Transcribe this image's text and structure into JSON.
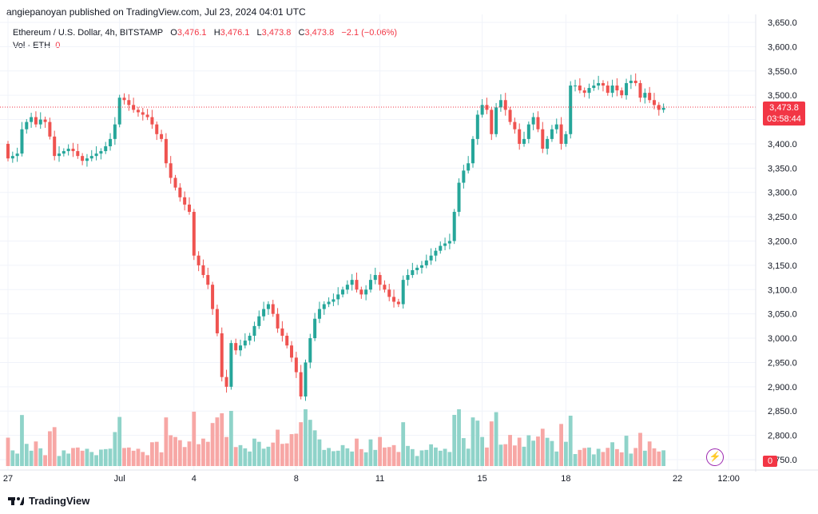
{
  "header": {
    "published_line": "angiepanoyan published on TradingView.com, Jul 23, 2024 04:01 UTC"
  },
  "legend": {
    "symbol": "Ethereum / U.S. Dollar, 4h, BITSTAMP",
    "o_label": "O",
    "o_value": "3,476.1",
    "h_label": "H",
    "h_value": "3,476.1",
    "l_label": "L",
    "l_value": "3,473.8",
    "c_label": "C",
    "c_value": "3,473.8",
    "change": "−2.1 (−0.06%)",
    "vol_label": "Vol · ETH",
    "vol_value": "0"
  },
  "badges": {
    "last_price": "3,473.8",
    "countdown": "03:58:44",
    "volume": "0"
  },
  "footer": {
    "brand": "TradingView"
  },
  "colors": {
    "up": "#26a69a",
    "down": "#ef5350",
    "up_vol": "#8fd3c9",
    "down_vol": "#f7a7a5",
    "grid": "#f0f3fa",
    "accent": "#f23645"
  },
  "chart_data": {
    "type": "candlestick",
    "ylim": [
      2725,
      3660
    ],
    "y_ticks": [
      "3,650.0",
      "3,600.0",
      "3,550.0",
      "3,500.0",
      "3,450.0",
      "3,400.0",
      "3,350.0",
      "3,300.0",
      "3,250.0",
      "3,200.0",
      "3,150.0",
      "3,100.0",
      "3,050.0",
      "3,000.0",
      "2,950.0",
      "2,900.0",
      "2,850.0",
      "2,800.0",
      "2,750.0"
    ],
    "y_tick_values": [
      3650,
      3600,
      3550,
      3500,
      3450,
      3400,
      3350,
      3300,
      3250,
      3200,
      3150,
      3100,
      3050,
      3000,
      2950,
      2900,
      2850,
      2800,
      2750
    ],
    "x_labels": [
      "27",
      "Jul",
      "4",
      "8",
      "11",
      "15",
      "18",
      "22",
      "12:00"
    ],
    "x_label_bar_index": [
      0,
      24,
      40,
      62,
      80,
      102,
      120,
      144,
      155
    ],
    "last_price": 3473.8,
    "closes": [
      3370,
      3375,
      3380,
      3430,
      3445,
      3455,
      3440,
      3450,
      3445,
      3415,
      3375,
      3380,
      3385,
      3390,
      3385,
      3375,
      3365,
      3370,
      3375,
      3380,
      3385,
      3395,
      3410,
      3440,
      3495,
      3490,
      3480,
      3470,
      3465,
      3460,
      3455,
      3440,
      3420,
      3410,
      3360,
      3330,
      3310,
      3290,
      3275,
      3260,
      3170,
      3150,
      3130,
      3110,
      3060,
      3010,
      2920,
      2900,
      2990,
      2975,
      2985,
      2995,
      3005,
      3025,
      3045,
      3060,
      3070,
      3050,
      3020,
      3005,
      2985,
      2960,
      2930,
      2880,
      2950,
      3000,
      3040,
      3060,
      3070,
      3075,
      3080,
      3090,
      3100,
      3110,
      3120,
      3100,
      3090,
      3100,
      3120,
      3130,
      3110,
      3100,
      3085,
      3075,
      3070,
      3120,
      3130,
      3140,
      3145,
      3150,
      3160,
      3170,
      3180,
      3190,
      3195,
      3200,
      3260,
      3320,
      3345,
      3360,
      3410,
      3460,
      3480,
      3470,
      3420,
      3475,
      3490,
      3470,
      3445,
      3430,
      3400,
      3410,
      3440,
      3455,
      3430,
      3390,
      3410,
      3430,
      3440,
      3400,
      3420,
      3520,
      3520,
      3510,
      3505,
      3515,
      3520,
      3525,
      3520,
      3505,
      3520,
      3510,
      3500,
      3525,
      3530,
      3525,
      3495,
      3505,
      3490,
      3480,
      3470,
      3474
    ]
  }
}
